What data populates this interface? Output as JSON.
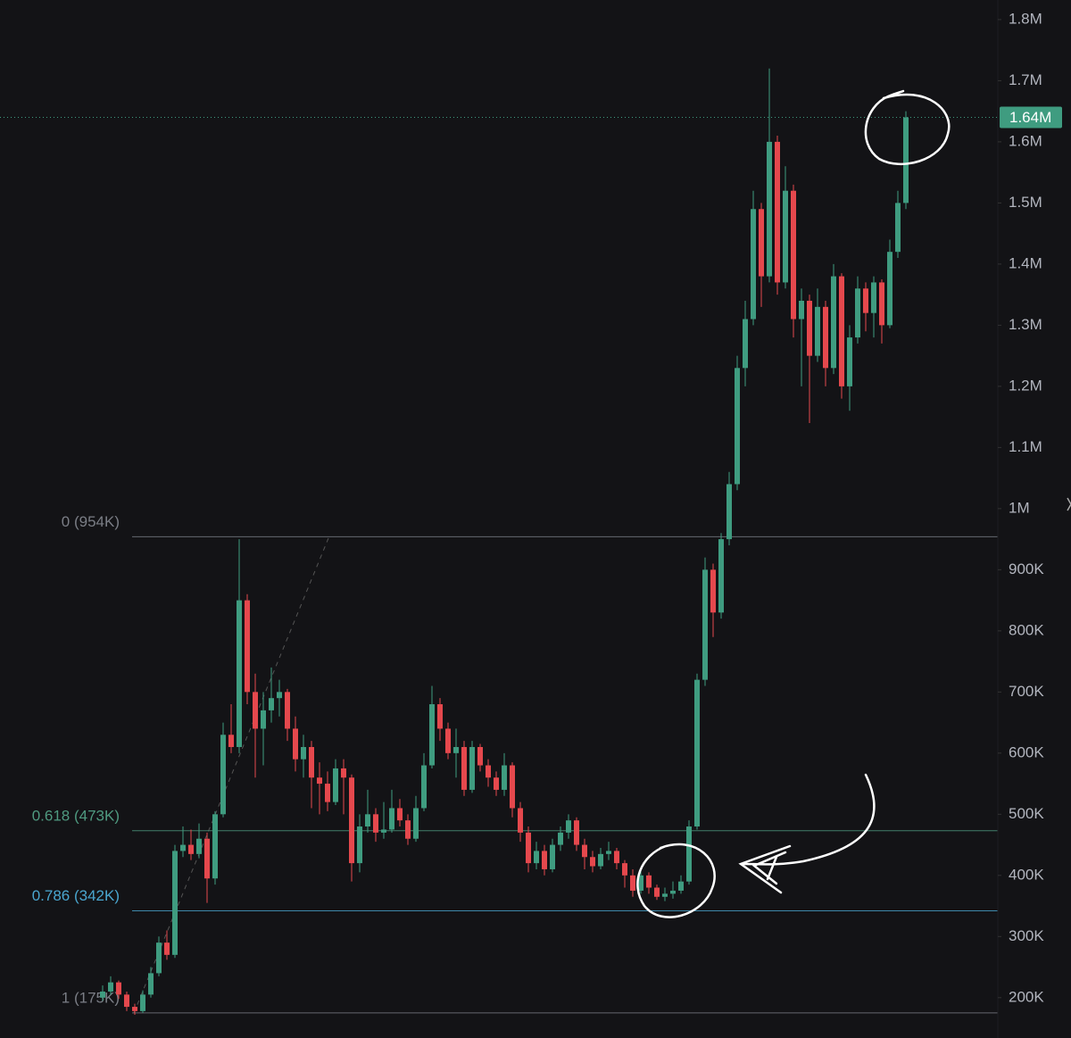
{
  "chart_data": {
    "type": "candlestick",
    "ylim": [
      134000,
      1832000
    ],
    "yticks": [
      {
        "value": 200000,
        "label": "200K"
      },
      {
        "value": 300000,
        "label": "300K"
      },
      {
        "value": 400000,
        "label": "400K"
      },
      {
        "value": 500000,
        "label": "500K"
      },
      {
        "value": 600000,
        "label": "600K"
      },
      {
        "value": 700000,
        "label": "700K"
      },
      {
        "value": 800000,
        "label": "800K"
      },
      {
        "value": 900000,
        "label": "900K"
      },
      {
        "value": 1000000,
        "label": "1M"
      },
      {
        "value": 1100000,
        "label": "1.1M"
      },
      {
        "value": 1200000,
        "label": "1.2M"
      },
      {
        "value": 1300000,
        "label": "1.3M"
      },
      {
        "value": 1400000,
        "label": "1.4M"
      },
      {
        "value": 1500000,
        "label": "1.5M"
      },
      {
        "value": 1600000,
        "label": "1.6M"
      },
      {
        "value": 1700000,
        "label": "1.7M"
      },
      {
        "value": 1800000,
        "label": "1.8M"
      }
    ],
    "up_color": "#3f9c80",
    "down_color": "#e5484d",
    "last_price": {
      "value": 1640000,
      "label": "1.64M",
      "color": "#3f9c80"
    },
    "fib_levels": [
      {
        "label": "0 (954K)",
        "value": 954000,
        "color": "#7b7e86"
      },
      {
        "label": "0.618 (473K)",
        "value": 473000,
        "color": "#4f9a80"
      },
      {
        "label": "0.786 (342K)",
        "value": 342000,
        "color": "#4aa6cf"
      },
      {
        "label": "1 (175K)",
        "value": 175000,
        "color": "#7b7e86"
      }
    ],
    "series": [
      {
        "open": [
          200000,
          210000,
          225000,
          205000,
          185000,
          178000,
          205000,
          240000,
          290000,
          270000,
          440000,
          450000,
          435000,
          460000,
          395000,
          500000,
          630000,
          610000,
          850000,
          700000,
          640000,
          670000,
          690000,
          700000,
          640000,
          590000,
          610000,
          560000,
          550000,
          520000,
          575000,
          560000,
          420000,
          480000,
          500000,
          470000,
          475000,
          510000,
          490000,
          460000,
          510000,
          580000,
          680000,
          640000,
          600000,
          610000,
          540000,
          610000,
          580000,
          560000,
          540000,
          580000,
          510000,
          470000,
          420000,
          440000,
          410000,
          450000,
          470000,
          490000,
          450000,
          430000,
          415000,
          435000,
          440000,
          420000,
          400000,
          375000,
          400000,
          380000,
          365000,
          370000,
          375000,
          390000,
          480000,
          720000,
          900000,
          830000,
          950000,
          1040000,
          1230000,
          1310000,
          1490000,
          1380000,
          1600000,
          1370000,
          1520000,
          1310000,
          1340000,
          1250000,
          1330000,
          1230000,
          1380000,
          1200000,
          1280000,
          1360000,
          1320000,
          1370000,
          1300000,
          1420000,
          1500000
        ],
        "high": [
          220000,
          235000,
          228000,
          210000,
          190000,
          212000,
          250000,
          300000,
          310000,
          450000,
          480000,
          475000,
          485000,
          470000,
          505000,
          650000,
          680000,
          950000,
          860000,
          730000,
          700000,
          740000,
          720000,
          705000,
          660000,
          630000,
          620000,
          585000,
          570000,
          590000,
          590000,
          565000,
          500000,
          540000,
          510000,
          520000,
          540000,
          525000,
          500000,
          530000,
          600000,
          710000,
          690000,
          650000,
          640000,
          620000,
          620000,
          615000,
          590000,
          570000,
          600000,
          585000,
          520000,
          480000,
          455000,
          450000,
          460000,
          480000,
          500000,
          495000,
          460000,
          440000,
          445000,
          455000,
          445000,
          425000,
          410000,
          410000,
          405000,
          385000,
          380000,
          390000,
          400000,
          490000,
          730000,
          920000,
          910000,
          960000,
          1060000,
          1250000,
          1340000,
          1520000,
          1500000,
          1720000,
          1610000,
          1560000,
          1530000,
          1360000,
          1350000,
          1360000,
          1340000,
          1400000,
          1385000,
          1300000,
          1380000,
          1370000,
          1380000,
          1375000,
          1440000,
          1520000,
          1650000
        ],
        "low": [
          195000,
          205000,
          198000,
          178000,
          172000,
          175000,
          200000,
          235000,
          262000,
          265000,
          430000,
          425000,
          428000,
          355000,
          385000,
          495000,
          600000,
          600000,
          680000,
          560000,
          580000,
          650000,
          660000,
          620000,
          570000,
          560000,
          510000,
          500000,
          505000,
          515000,
          500000,
          390000,
          405000,
          470000,
          455000,
          460000,
          470000,
          480000,
          450000,
          455000,
          505000,
          575000,
          620000,
          590000,
          560000,
          530000,
          535000,
          570000,
          545000,
          530000,
          530000,
          495000,
          455000,
          405000,
          410000,
          400000,
          405000,
          440000,
          460000,
          440000,
          410000,
          405000,
          410000,
          425000,
          410000,
          380000,
          365000,
          370000,
          370000,
          360000,
          358000,
          362000,
          370000,
          385000,
          475000,
          710000,
          790000,
          820000,
          940000,
          1030000,
          1200000,
          1300000,
          1330000,
          1370000,
          1350000,
          1360000,
          1280000,
          1200000,
          1140000,
          1240000,
          1200000,
          1220000,
          1180000,
          1160000,
          1270000,
          1290000,
          1280000,
          1270000,
          1295000,
          1410000,
          1490000
        ],
        "close": [
          210000,
          225000,
          205000,
          185000,
          178000,
          205000,
          240000,
          290000,
          270000,
          440000,
          450000,
          435000,
          460000,
          395000,
          500000,
          630000,
          610000,
          850000,
          700000,
          640000,
          670000,
          690000,
          700000,
          640000,
          590000,
          610000,
          560000,
          550000,
          520000,
          575000,
          560000,
          420000,
          480000,
          500000,
          470000,
          475000,
          510000,
          490000,
          460000,
          510000,
          580000,
          680000,
          640000,
          600000,
          610000,
          540000,
          610000,
          580000,
          560000,
          540000,
          580000,
          510000,
          470000,
          420000,
          440000,
          410000,
          450000,
          470000,
          490000,
          450000,
          430000,
          415000,
          435000,
          440000,
          420000,
          400000,
          375000,
          400000,
          380000,
          365000,
          370000,
          375000,
          390000,
          480000,
          720000,
          900000,
          830000,
          950000,
          1040000,
          1230000,
          1310000,
          1490000,
          1380000,
          1600000,
          1370000,
          1520000,
          1310000,
          1340000,
          1250000,
          1330000,
          1230000,
          1380000,
          1200000,
          1280000,
          1360000,
          1320000,
          1370000,
          1300000,
          1420000,
          1500000,
          1640000
        ]
      }
    ]
  }
}
